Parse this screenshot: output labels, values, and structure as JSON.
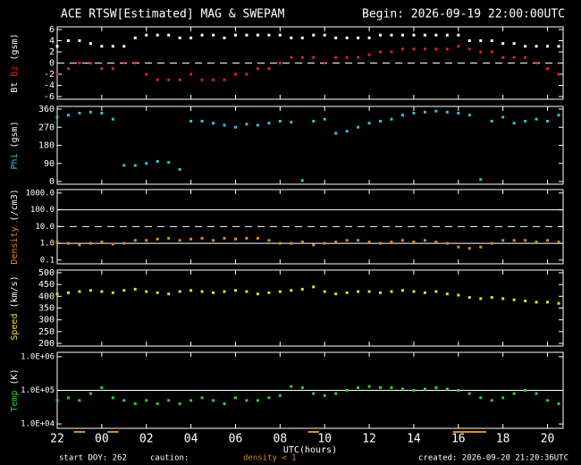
{
  "header": {
    "title": "ACE RTSW[Estimated] MAG & SWEPAM",
    "subtitle": "Begin: 2026-09-19 22:00:00UTC"
  },
  "footer": {
    "start": "start DOY: 262",
    "caution": "caution:",
    "caution_note": "density < 1",
    "caution_color": "#e08a1e",
    "created": "created: 2026-09-20 21:20:36UTC"
  },
  "chart_data": [
    {
      "type": "scatter",
      "ylabel": "(gsm)",
      "ylim": [
        -6,
        6
      ],
      "yticks": [
        -6,
        -4,
        -2,
        0,
        2,
        4,
        6
      ],
      "xlim": [
        0,
        22.7
      ],
      "hlines": [
        {
          "value": 0,
          "dash": true
        }
      ],
      "x": [
        0,
        0.5,
        1,
        1.5,
        2,
        2.5,
        3,
        3.5,
        4,
        4.5,
        5,
        5.5,
        6,
        6.5,
        7,
        7.5,
        8,
        8.5,
        9,
        9.5,
        10,
        10.5,
        11,
        11.5,
        12,
        12.5,
        13,
        13.5,
        14,
        14.5,
        15,
        15.5,
        16,
        16.5,
        17,
        17.5,
        18,
        18.5,
        19,
        19.5,
        20,
        20.5,
        21,
        21.5,
        22,
        22.5
      ],
      "series": [
        {
          "name": "Bt",
          "color": "#ffffff",
          "values": [
            3,
            4,
            4,
            3.5,
            3,
            3,
            3,
            4.5,
            5,
            5,
            5,
            4.5,
            4.5,
            5,
            5,
            4.5,
            5,
            5,
            5,
            5,
            5,
            4.5,
            4.5,
            5,
            5,
            4.5,
            4.5,
            4.5,
            4.5,
            5,
            5,
            5,
            5,
            5,
            5,
            5,
            5,
            4,
            4,
            4,
            3.5,
            3.5,
            3,
            3,
            3,
            3
          ]
        },
        {
          "name": "Bz",
          "color": "#e02020",
          "values": [
            -2,
            -1,
            0,
            0,
            -1,
            -1,
            0,
            0,
            -2,
            -3,
            -3,
            -3,
            -2,
            -3,
            -3,
            -3,
            -2,
            -2,
            -1,
            -1,
            0,
            1,
            1,
            1,
            0,
            1,
            1,
            1,
            1.5,
            2,
            2,
            2.5,
            2.5,
            2.5,
            2.5,
            2.5,
            3,
            2.5,
            2,
            2,
            1,
            1,
            1,
            0,
            -1,
            -2
          ]
        }
      ]
    },
    {
      "type": "scatter",
      "ylabel": "(gsm)",
      "ylim": [
        0,
        360
      ],
      "yticks": [
        0,
        90,
        180,
        270,
        360
      ],
      "xlim": [
        0,
        22.7
      ],
      "x": [
        0,
        0.5,
        1,
        1.5,
        2,
        2.5,
        3,
        3.5,
        4,
        4.5,
        5,
        5.5,
        6,
        6.5,
        7,
        7.5,
        8,
        8.5,
        9,
        9.5,
        10,
        10.5,
        11,
        11.5,
        12,
        12.5,
        13,
        13.5,
        14,
        14.5,
        15,
        15.5,
        16,
        16.5,
        17,
        17.5,
        18,
        18.5,
        19,
        19.5,
        20,
        20.5,
        21,
        21.5,
        22,
        22.5
      ],
      "series": [
        {
          "name": "Phi",
          "color": "#30c0e0",
          "values": [
            320,
            330,
            340,
            345,
            340,
            310,
            80,
            80,
            90,
            100,
            95,
            60,
            300,
            300,
            290,
            280,
            270,
            285,
            280,
            290,
            300,
            295,
            5,
            300,
            310,
            240,
            250,
            270,
            290,
            300,
            310,
            330,
            340,
            345,
            350,
            345,
            340,
            330,
            10,
            300,
            320,
            290,
            300,
            310,
            300,
            330
          ]
        }
      ]
    },
    {
      "type": "scatter",
      "log": true,
      "ylabel": "(/cm3)",
      "ylim": [
        0.06,
        1600
      ],
      "xlim": [
        0,
        22.7
      ],
      "yticks": [
        0.1,
        {
          "value": 1,
          "label": "1.0"
        },
        {
          "value": 10,
          "label": "10.0"
        },
        {
          "value": 100,
          "label": "100.0"
        },
        {
          "value": 1000,
          "label": "1000.0"
        }
      ],
      "hlines": [
        {
          "value": 1,
          "dash": false
        },
        {
          "value": 10,
          "dash": true
        },
        {
          "value": 100,
          "dash": false
        }
      ],
      "x": [
        0,
        0.5,
        1,
        1.5,
        2,
        2.5,
        3,
        3.5,
        4,
        4.5,
        5,
        5.5,
        6,
        6.5,
        7,
        7.5,
        8,
        8.5,
        9,
        9.5,
        10,
        10.5,
        11,
        11.5,
        12,
        12.5,
        13,
        13.5,
        14,
        14.5,
        15,
        15.5,
        16,
        16.5,
        17,
        17.5,
        18,
        18.5,
        19,
        19.5,
        20,
        20.5,
        21,
        21.5,
        22,
        22.5
      ],
      "series": [
        {
          "name": "Density",
          "color": "#e08a1e",
          "values": [
            1.2,
            1,
            0.8,
            1,
            1.2,
            0.9,
            1,
            1.5,
            1.5,
            1.8,
            2,
            1.5,
            1.8,
            2,
            1.5,
            2,
            1.8,
            2,
            2,
            1.5,
            1,
            1,
            1.2,
            0.8,
            1,
            1.2,
            1.5,
            1.5,
            1.2,
            1,
            1.2,
            1.5,
            1.2,
            1.5,
            1.2,
            1,
            0.6,
            0.5,
            0.6,
            1,
            1.5,
            1.5,
            1.5,
            1.2,
            1.5,
            1.2
          ]
        }
      ]
    },
    {
      "type": "scatter",
      "ylabel": "(km/s)",
      "ylim": [
        200,
        500
      ],
      "yticks": [
        200,
        250,
        300,
        350,
        400,
        450,
        500
      ],
      "xlim": [
        0,
        22.7
      ],
      "x": [
        0,
        0.5,
        1,
        1.5,
        2,
        2.5,
        3,
        3.5,
        4,
        4.5,
        5,
        5.5,
        6,
        6.5,
        7,
        7.5,
        8,
        8.5,
        9,
        9.5,
        10,
        10.5,
        11,
        11.5,
        12,
        12.5,
        13,
        13.5,
        14,
        14.5,
        15,
        15.5,
        16,
        16.5,
        17,
        17.5,
        18,
        18.5,
        19,
        19.5,
        20,
        20.5,
        21,
        21.5,
        22,
        22.5
      ],
      "series": [
        {
          "name": "Speed",
          "color": "#e8e020",
          "values": [
            410,
            415,
            420,
            425,
            420,
            415,
            425,
            430,
            420,
            415,
            410,
            420,
            425,
            420,
            415,
            420,
            425,
            420,
            410,
            415,
            420,
            425,
            430,
            440,
            420,
            410,
            415,
            420,
            420,
            415,
            420,
            425,
            420,
            415,
            420,
            410,
            405,
            395,
            390,
            395,
            390,
            385,
            380,
            375,
            375,
            370
          ]
        }
      ]
    },
    {
      "type": "scatter",
      "log": true,
      "ylabel": "(K)",
      "ylim": [
        7400,
        1350000
      ],
      "xlim": [
        0,
        22.7
      ],
      "yticks": [
        {
          "value": 10000,
          "label": "1.0E+04"
        },
        {
          "value": 100000,
          "label": "1.0E+05"
        },
        {
          "value": 1000000,
          "label": "1.0E+06"
        }
      ],
      "hlines": [
        {
          "value": 100000,
          "dash": false
        }
      ],
      "xlabel": "UTC(hours)",
      "xticks": [
        {
          "value": 0,
          "label": "22"
        },
        {
          "value": 2,
          "label": "00"
        },
        {
          "value": 4,
          "label": "02"
        },
        {
          "value": 6,
          "label": "04"
        },
        {
          "value": 8,
          "label": "06"
        },
        {
          "value": 10,
          "label": "08"
        },
        {
          "value": 12,
          "label": "10"
        },
        {
          "value": 14,
          "label": "12"
        },
        {
          "value": 16,
          "label": "14"
        },
        {
          "value": 18,
          "label": "16"
        },
        {
          "value": 20,
          "label": "18"
        },
        {
          "value": 22,
          "label": "20"
        }
      ],
      "x": [
        0,
        0.5,
        1,
        1.5,
        2,
        2.5,
        3,
        3.5,
        4,
        4.5,
        5,
        5.5,
        6,
        6.5,
        7,
        7.5,
        8,
        8.5,
        9,
        9.5,
        10,
        10.5,
        11,
        11.5,
        12,
        12.5,
        13,
        13.5,
        14,
        14.5,
        15,
        15.5,
        16,
        16.5,
        17,
        17.5,
        18,
        18.5,
        19,
        19.5,
        20,
        20.5,
        21,
        21.5,
        22,
        22.5
      ],
      "series": [
        {
          "name": "Temp",
          "color": "#30d030",
          "values": [
            50000,
            60000,
            50000,
            80000,
            120000,
            60000,
            50000,
            40000,
            50000,
            40000,
            50000,
            40000,
            50000,
            60000,
            50000,
            40000,
            60000,
            50000,
            50000,
            60000,
            70000,
            130000,
            120000,
            80000,
            70000,
            80000,
            100000,
            120000,
            130000,
            120000,
            120000,
            110000,
            100000,
            110000,
            120000,
            110000,
            100000,
            80000,
            60000,
            50000,
            60000,
            80000,
            100000,
            80000,
            50000,
            40000
          ]
        }
      ]
    }
  ]
}
